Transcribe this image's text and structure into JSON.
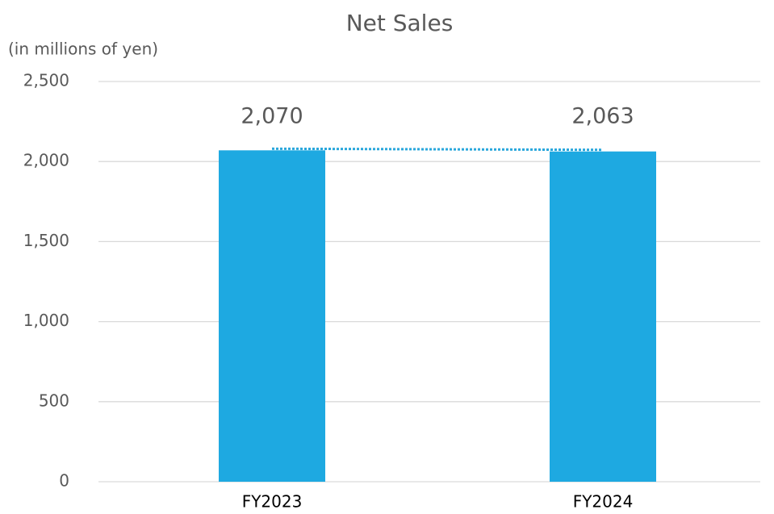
{
  "chart_data": {
    "type": "bar",
    "title": "Net Sales",
    "y_axis_label": "(in millions of yen)",
    "categories": [
      "FY2023",
      "FY2024"
    ],
    "values": [
      2070,
      2063
    ],
    "value_labels": [
      "2,070",
      "2,063"
    ],
    "color": "#1ea9e1",
    "ylim": [
      0,
      2500
    ],
    "yticks": [
      0,
      500,
      {
        "value": 1000,
        "label": "1,000"
      },
      {
        "value": 1500,
        "label": "1,500"
      },
      {
        "value": 2000,
        "label": "2,000"
      },
      {
        "value": 2500,
        "label": "2,500"
      }
    ],
    "grid": true
  }
}
